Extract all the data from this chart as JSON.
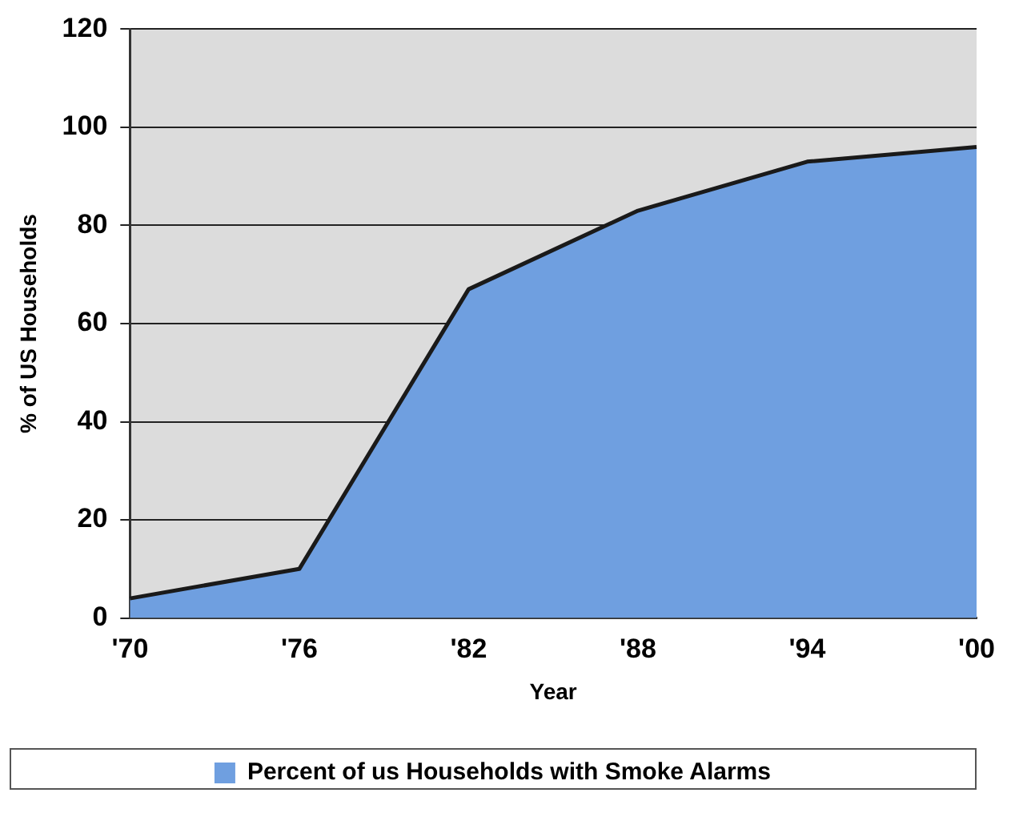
{
  "chart_data": {
    "type": "area",
    "xlabel": "Year",
    "ylabel": "% of US Households",
    "categories": [
      "'70",
      "'76",
      "'82",
      "'88",
      "'94",
      "'00"
    ],
    "series": [
      {
        "name": "Percent of us Households with Smoke Alarms",
        "color": "#6f9fe0",
        "values": [
          4,
          10,
          67,
          83,
          93,
          96
        ]
      }
    ],
    "ylim": [
      0,
      120
    ],
    "yticks": [
      0,
      20,
      40,
      60,
      80,
      100,
      120
    ],
    "grid": "y",
    "legend": "bottom",
    "marker": "none"
  }
}
